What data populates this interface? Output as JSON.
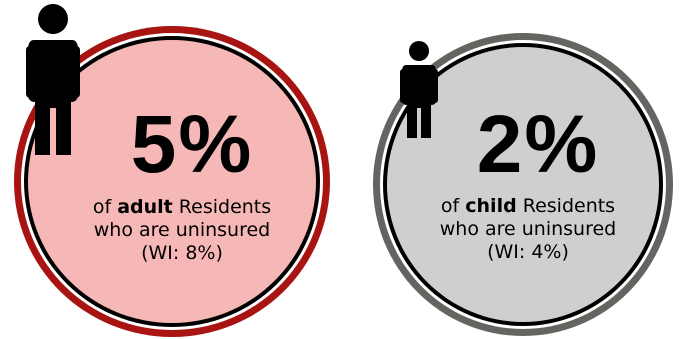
{
  "stats": [
    {
      "id": "adult",
      "value": "5%",
      "line1_prefix": "of ",
      "line1_bold": "adult",
      "line1_suffix": " Residents",
      "line2": "who are uninsured",
      "line3": "(WI: 8%)",
      "ring_color": "#a81411",
      "fill_color": "#f6b8b6",
      "icon": "person-icon"
    },
    {
      "id": "child",
      "value": "2%",
      "line1_prefix": "of ",
      "line1_bold": "child",
      "line1_suffix": " Residents",
      "line2": "who are uninsured",
      "line3": "(WI: 4%)",
      "ring_color": "#656461",
      "fill_color": "#cfcfcf",
      "icon": "person-icon"
    }
  ]
}
